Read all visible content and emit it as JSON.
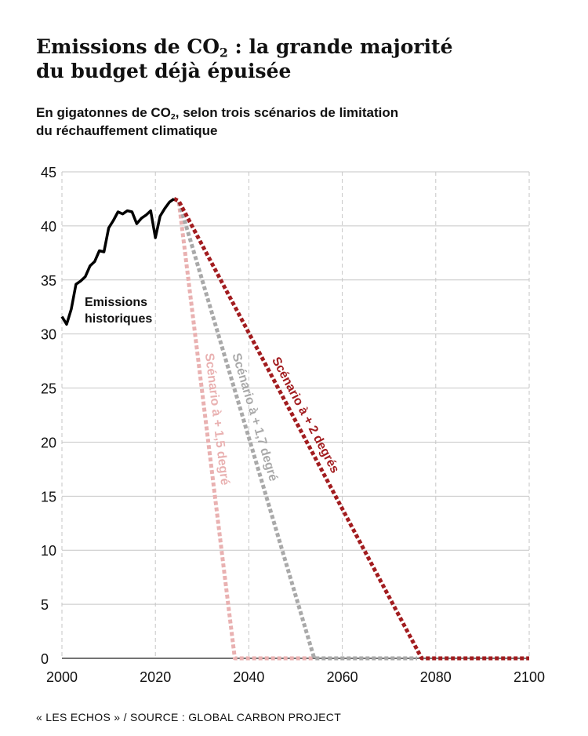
{
  "title": {
    "line1_before": "Emissions de CO",
    "line1_sub": "2",
    "line1_after": " : la grande majorité",
    "line2": "du budget déjà épuisée"
  },
  "subtitle": {
    "line1_before": "En gigatonnes de CO",
    "line1_sub": "2",
    "line1_after": ", selon trois scénarios de limitation",
    "line2": "du réchauffement climatique"
  },
  "source": "« LES ECHOS » / SOURCE : GLOBAL CARBON PROJECT",
  "chart_data": {
    "type": "line",
    "xlim": [
      2000,
      2100
    ],
    "ylim": [
      0,
      45
    ],
    "x_ticks": [
      "2000",
      "2020",
      "2040",
      "2060",
      "2080",
      "2100"
    ],
    "y_ticks": [
      "0",
      "5",
      "10",
      "15",
      "20",
      "25",
      "30",
      "35",
      "40",
      "45"
    ],
    "grid": "horizontal solid, vertical dashed",
    "series": [
      {
        "name": "historical",
        "label_lines": [
          "Emissions",
          "historiques"
        ],
        "color": "#000000",
        "style": "solid",
        "x": [
          2000,
          2001,
          2002,
          2003,
          2004,
          2005,
          2006,
          2007,
          2008,
          2009,
          2010,
          2011,
          2012,
          2013,
          2014,
          2015,
          2016,
          2017,
          2018,
          2019,
          2020,
          2021,
          2022,
          2023,
          2024
        ],
        "y": [
          31.6,
          30.9,
          32.3,
          34.6,
          34.9,
          35.3,
          36.3,
          36.7,
          37.7,
          37.6,
          39.8,
          40.5,
          41.3,
          41.1,
          41.4,
          41.3,
          40.2,
          40.7,
          41.0,
          41.4,
          38.9,
          40.9,
          41.6,
          42.2,
          42.5
        ]
      },
      {
        "name": "Scénario à + 1,5 degré",
        "label": "Scénario à + 1,5 degré",
        "color": "#e9b1b1",
        "style": "dotted",
        "x": [
          2024,
          2025,
          2037,
          2054
        ],
        "y": [
          42.5,
          42.3,
          0,
          0
        ]
      },
      {
        "name": "Scénario à + 1,7 degré",
        "label": "Scénario à + 1,7 degré",
        "color": "#a9a9a9",
        "style": "dotted",
        "x": [
          2024,
          2025,
          2054,
          2076
        ],
        "y": [
          42.5,
          42.3,
          0,
          0
        ]
      },
      {
        "name": "Scénario à + 2 degrés",
        "label": "Scénario à + 2 degrés",
        "color": "#a21c1f",
        "style": "dotted",
        "x": [
          2024,
          2025,
          2077,
          2100
        ],
        "y": [
          42.5,
          42.3,
          0,
          0
        ]
      }
    ]
  }
}
